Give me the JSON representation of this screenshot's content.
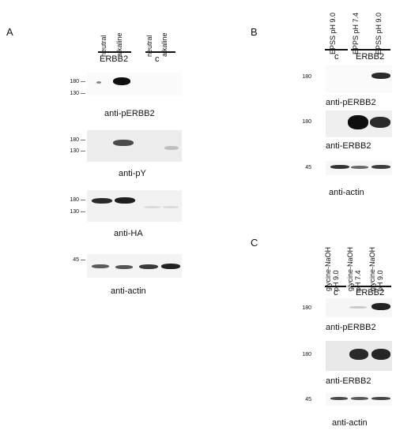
{
  "panels": {
    "a": {
      "letter": "A",
      "lanes": [
        "neutral",
        "alkaline",
        "neutral",
        "alkaline"
      ],
      "group_erbb2": "ERBB2",
      "group_c": "c",
      "blots": [
        {
          "caption": "anti-pERBB2",
          "markers": [
            "180",
            "130"
          ]
        },
        {
          "caption": "anti-pY",
          "markers": [
            "180",
            "130"
          ]
        },
        {
          "caption": "anti-HA",
          "markers": [
            "180",
            "130"
          ]
        },
        {
          "caption": "anti-actin",
          "markers": [
            "45"
          ]
        }
      ]
    },
    "b": {
      "letter": "B",
      "lanes": [
        "EPSS pH 9.0",
        "EPPS pH 7.4",
        "EPSS pH 9.0"
      ],
      "group_c": "c",
      "group_erbb2": "ERBB2",
      "blots": [
        {
          "caption": "anti-pERBB2",
          "markers": [
            "180"
          ]
        },
        {
          "caption": "anti-ERBB2",
          "markers": [
            "180"
          ]
        },
        {
          "caption": "anti-actin",
          "markers": [
            "45"
          ]
        }
      ]
    },
    "c": {
      "letter": "C",
      "lanes": [
        {
          "line1": "glycine-NaOH",
          "line2": "pH 9.0"
        },
        {
          "line1": "glycine-NaOH",
          "line2": "pH 7.4"
        },
        {
          "line1": "glycine-NaOH",
          "line2": "pH 9.0"
        }
      ],
      "group_c": "c",
      "group_erbb2": "ERBB2",
      "blots": [
        {
          "caption": "anti-pERBB2",
          "markers": [
            "180"
          ]
        },
        {
          "caption": "anti-ERBB2",
          "markers": [
            "180"
          ]
        },
        {
          "caption": "anti-actin",
          "markers": [
            "45"
          ]
        }
      ]
    }
  }
}
